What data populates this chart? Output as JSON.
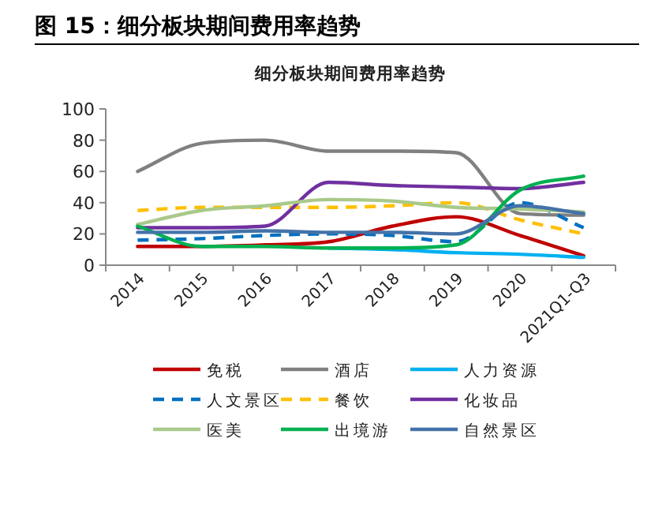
{
  "chart_data": {
    "type": "line",
    "title": "图 15：细分板块期间费用率趋势",
    "subtitle": "细分板块期间费用率趋势",
    "categories": [
      "2014",
      "2015",
      "2016",
      "2017",
      "2018",
      "2019",
      "2020",
      "2021Q1-Q3"
    ],
    "ylim": [
      0,
      100
    ],
    "yticks": [
      0,
      20,
      40,
      60,
      80,
      100
    ],
    "grid": false,
    "legend": "bottom",
    "marker": "none",
    "series": [
      {
        "name": "免税",
        "color": "#c00000",
        "line_style": "solid",
        "values": [
          12,
          12,
          13,
          15,
          25,
          31,
          19,
          6
        ]
      },
      {
        "name": "酒店",
        "color": "#808080",
        "line_style": "solid",
        "values": [
          60,
          78,
          80,
          73,
          73,
          72,
          33,
          32
        ]
      },
      {
        "name": "人力资源",
        "color": "#00b0f0",
        "line_style": "solid",
        "values": [
          null,
          null,
          null,
          11,
          10,
          8,
          7,
          5
        ]
      },
      {
        "name": "人文景区",
        "color": "#0070c0",
        "line_style": "dashed",
        "values": [
          16,
          17,
          19,
          20,
          19,
          15,
          40,
          24
        ]
      },
      {
        "name": "餐饮",
        "color": "#ffc000",
        "line_style": "dashed",
        "values": [
          35,
          37,
          37,
          37,
          38,
          40,
          29,
          20
        ]
      },
      {
        "name": "化妆品",
        "color": "#7030a0",
        "line_style": "solid",
        "values": [
          24,
          24,
          25,
          53,
          51,
          50,
          49,
          53
        ]
      },
      {
        "name": "医美",
        "color": "#a9c98a",
        "line_style": "solid",
        "values": [
          26,
          35,
          38,
          42,
          41,
          37,
          36,
          34
        ]
      },
      {
        "name": "出境游",
        "color": "#00b050",
        "line_style": "solid",
        "values": [
          25,
          12,
          12,
          11,
          11,
          13,
          48,
          57
        ]
      },
      {
        "name": "自然景区",
        "color": "#4472a8",
        "line_style": "solid",
        "values": [
          21,
          21,
          22,
          21,
          21,
          20,
          38,
          33
        ]
      }
    ]
  }
}
